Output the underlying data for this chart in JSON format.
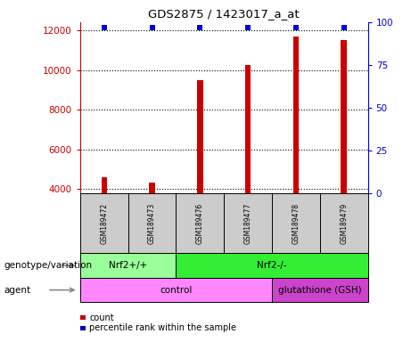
{
  "title": "GDS2875 / 1423017_a_at",
  "samples": [
    "GSM189472",
    "GSM189473",
    "GSM189476",
    "GSM189477",
    "GSM189478",
    "GSM189479"
  ],
  "counts": [
    4600,
    4350,
    9500,
    10250,
    11700,
    11500
  ],
  "percentile_ranks": [
    97,
    97,
    97,
    97,
    97,
    97
  ],
  "ylim_left": [
    3800,
    12400
  ],
  "ylim_right": [
    0,
    100
  ],
  "yticks_left": [
    4000,
    6000,
    8000,
    10000,
    12000
  ],
  "yticks_right": [
    0,
    25,
    50,
    75,
    100
  ],
  "bar_color": "#cc0000",
  "percentile_color": "#0000cc",
  "bar_width": 0.12,
  "genotype_groups": [
    {
      "label": "Nrf2+/+",
      "start": 0,
      "end": 1,
      "color": "#99ff99"
    },
    {
      "label": "Nrf2-/-",
      "start": 2,
      "end": 5,
      "color": "#33ee33"
    }
  ],
  "agent_groups": [
    {
      "label": "control",
      "start": 0,
      "end": 3,
      "color": "#ff88ff"
    },
    {
      "label": "glutathione (GSH)",
      "start": 4,
      "end": 5,
      "color": "#cc44cc"
    }
  ],
  "sample_box_color": "#cccccc",
  "row_label_genotype": "genotype/variation",
  "row_label_agent": "agent",
  "legend_count_label": "count",
  "legend_percentile_label": "percentile rank within the sample",
  "left_axis_color": "#cc0000",
  "right_axis_color": "#0000cc",
  "grid_color": "black",
  "grid_linestyle": "dotted",
  "grid_linewidth": 0.8
}
